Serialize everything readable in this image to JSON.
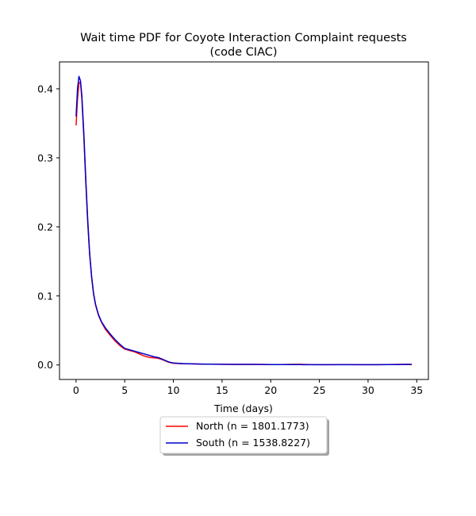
{
  "chart_data": {
    "type": "line",
    "title_line1": "Wait time PDF for Coyote Interaction Complaint  requests",
    "title_line2": "(code CIAC)",
    "xlabel": "Time (days)",
    "ylabel": "",
    "xlim": [
      -1.7,
      36.2
    ],
    "ylim": [
      -0.021,
      0.439
    ],
    "xticks": [
      0,
      5,
      10,
      15,
      20,
      25,
      30,
      35
    ],
    "yticks": [
      0.0,
      0.1,
      0.2,
      0.3,
      0.4
    ],
    "ytick_labels": [
      "0.0",
      "0.1",
      "0.2",
      "0.3",
      "0.4"
    ],
    "grid": false,
    "legend_position": "below-center",
    "series": [
      {
        "name": "North (n = 1801.1773)",
        "color": "#ff0000",
        "x": [
          0,
          0.15,
          0.3,
          0.45,
          0.6,
          0.8,
          1.0,
          1.2,
          1.4,
          1.6,
          1.8,
          2.0,
          2.3,
          2.6,
          3.0,
          3.5,
          4.0,
          4.5,
          5.0,
          5.5,
          6.0,
          6.5,
          7.0,
          7.5,
          8.0,
          8.5,
          9.0,
          9.5,
          10.0,
          11.0,
          12.0,
          13.0,
          14.0,
          15.0,
          16.0,
          17.0,
          18.0,
          19.0,
          20.0,
          21.0,
          22.0,
          23.0,
          24.0,
          25.0,
          26.0,
          27.0,
          28.0,
          29.0,
          30.0,
          31.0,
          32.0,
          33.0,
          34.0,
          34.5
        ],
        "y": [
          0.347,
          0.385,
          0.408,
          0.41,
          0.385,
          0.33,
          0.265,
          0.205,
          0.16,
          0.127,
          0.103,
          0.087,
          0.072,
          0.062,
          0.052,
          0.043,
          0.035,
          0.028,
          0.023,
          0.021,
          0.019,
          0.016,
          0.013,
          0.011,
          0.0105,
          0.0095,
          0.007,
          0.004,
          0.0025,
          0.0018,
          0.0015,
          0.0012,
          0.0011,
          0.001,
          0.0009,
          0.0007,
          0.0009,
          0.0008,
          0.0006,
          0.0005,
          0.0008,
          0.001,
          0.0005,
          0.0004,
          0.0004,
          0.0005,
          0.0006,
          0.0004,
          0.0004,
          0.0004,
          0.0006,
          0.0008,
          0.001,
          0.0008
        ]
      },
      {
        "name": "South (n = 1538.8227)",
        "color": "#0000cc",
        "x": [
          0,
          0.15,
          0.3,
          0.45,
          0.6,
          0.8,
          1.0,
          1.2,
          1.4,
          1.6,
          1.8,
          2.0,
          2.3,
          2.6,
          3.0,
          3.5,
          4.0,
          4.5,
          5.0,
          5.5,
          6.0,
          6.5,
          7.0,
          7.5,
          8.0,
          8.5,
          9.0,
          9.5,
          10.0,
          11.0,
          12.0,
          13.0,
          14.0,
          15.0,
          16.0,
          17.0,
          18.0,
          19.0,
          20.0,
          21.0,
          22.0,
          23.0,
          24.0,
          25.0,
          26.0,
          27.0,
          28.0,
          29.0,
          30.0,
          31.0,
          32.0,
          33.0,
          34.0,
          34.5
        ],
        "y": [
          0.36,
          0.4,
          0.418,
          0.412,
          0.39,
          0.335,
          0.27,
          0.21,
          0.162,
          0.128,
          0.104,
          0.088,
          0.073,
          0.063,
          0.054,
          0.045,
          0.037,
          0.03,
          0.024,
          0.022,
          0.02,
          0.018,
          0.016,
          0.014,
          0.012,
          0.0105,
          0.0075,
          0.0045,
          0.0028,
          0.002,
          0.0015,
          0.0013,
          0.0011,
          0.001,
          0.0009,
          0.0008,
          0.0008,
          0.0007,
          0.0006,
          0.0005,
          0.0005,
          0.0005,
          0.0004,
          0.0004,
          0.0004,
          0.0004,
          0.0004,
          0.0004,
          0.0004,
          0.0004,
          0.0005,
          0.0006,
          0.0008,
          0.0007
        ]
      }
    ]
  }
}
